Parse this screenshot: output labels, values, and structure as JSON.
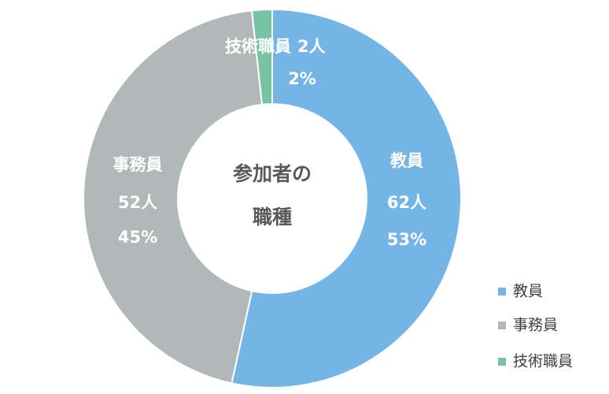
{
  "chart_data": {
    "type": "donut",
    "title_lines": [
      "参加者の",
      "職種"
    ],
    "categories": [
      "教員",
      "事務員",
      "技術職員"
    ],
    "values": [
      62,
      52,
      2
    ],
    "value_labels": [
      "62人",
      "52人",
      "2人"
    ],
    "percents": [
      53,
      45,
      2
    ],
    "percent_labels": [
      "53%",
      "45%",
      "2%"
    ],
    "colors": [
      "#75b5e5",
      "#b1b8b8",
      "#77c3a2"
    ],
    "legend": "right"
  }
}
